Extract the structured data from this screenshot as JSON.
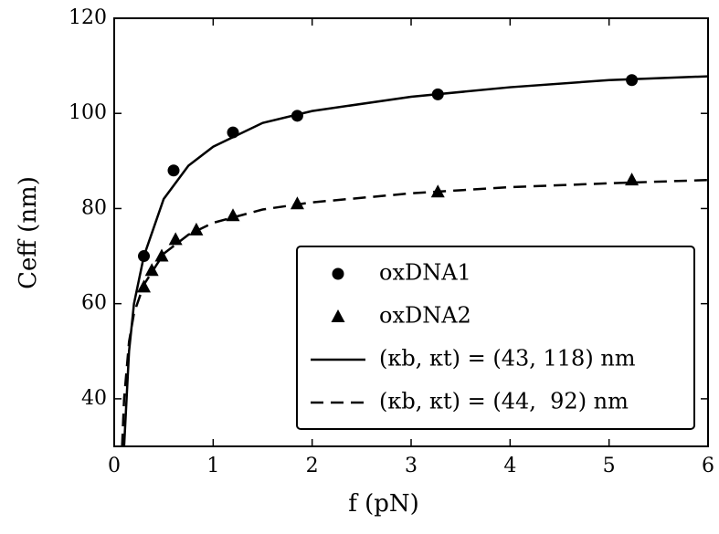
{
  "chart_data": {
    "type": "scatter",
    "xlabel": "f (pN)",
    "ylabel": "Ceff (nm)",
    "xlim": [
      0,
      6
    ],
    "ylim": [
      30,
      120
    ],
    "xticks": [
      0,
      1,
      2,
      3,
      4,
      5,
      6
    ],
    "yticks": [
      40,
      60,
      80,
      100,
      120
    ],
    "legend": "lower right",
    "series": [
      {
        "name": "oxDNA1",
        "color": "#000000",
        "marker": "circle",
        "x": [
          0.3,
          0.6,
          1.2,
          1.85,
          3.27,
          5.23
        ],
        "values": [
          70,
          88,
          96,
          99.5,
          104,
          107
        ]
      },
      {
        "name": "oxDNA2",
        "color": "#000000",
        "marker": "triangle",
        "x": [
          0.3,
          0.38,
          0.48,
          0.62,
          0.83,
          1.2,
          1.85,
          3.27,
          5.23
        ],
        "values": [
          63.5,
          67,
          70,
          73.5,
          75.5,
          78.5,
          81,
          83.5,
          86
        ]
      },
      {
        "name": "(κb, κt) = (43, 118) nm",
        "color": "#000000",
        "linestyle": "solid",
        "x": [
          0.1,
          0.15,
          0.2,
          0.3,
          0.5,
          0.75,
          1,
          1.5,
          2,
          3,
          4,
          5,
          6
        ],
        "values": [
          30,
          50,
          60,
          70,
          82,
          89,
          93,
          98,
          100.5,
          103.5,
          105.5,
          107,
          107.8
        ]
      },
      {
        "name": "(κb, κt) = (44,  92) nm",
        "color": "#000000",
        "linestyle": "dashed",
        "x": [
          0.08,
          0.1,
          0.15,
          0.2,
          0.3,
          0.5,
          0.75,
          1,
          1.5,
          2,
          3,
          4,
          5,
          6
        ],
        "values": [
          30,
          40,
          52,
          58,
          64,
          70.5,
          74.5,
          77,
          79.8,
          81.3,
          83.2,
          84.5,
          85.3,
          86
        ]
      }
    ]
  }
}
